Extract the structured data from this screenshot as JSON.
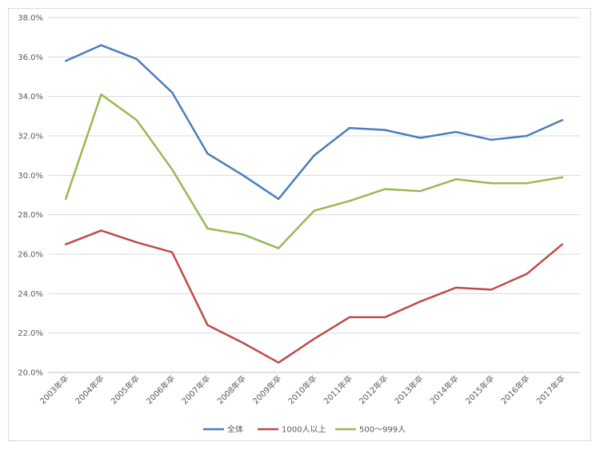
{
  "chart_data": {
    "type": "line",
    "categories": [
      "2003年卒",
      "2004年卒",
      "2005年卒",
      "2006年卒",
      "2007年卒",
      "2008年卒",
      "2009年卒",
      "2010年卒",
      "2011年卒",
      "2012年卒",
      "2013年卒",
      "2014年卒",
      "2015年卒",
      "2016年卒",
      "2017年卒"
    ],
    "series": [
      {
        "name": "全体",
        "color": "#4a7ebb",
        "values": [
          35.8,
          36.6,
          35.9,
          34.2,
          31.1,
          30.0,
          28.8,
          31.0,
          32.4,
          32.3,
          31.9,
          32.2,
          31.8,
          32.0,
          32.8
        ]
      },
      {
        "name": "1000人以上",
        "color": "#be4b48",
        "values": [
          26.5,
          27.2,
          26.6,
          26.1,
          22.4,
          21.5,
          20.5,
          21.7,
          22.8,
          22.8,
          23.6,
          24.3,
          24.2,
          25.0,
          26.5
        ]
      },
      {
        "name": "500〜999人",
        "color": "#98b954",
        "values": [
          28.8,
          34.1,
          32.8,
          30.3,
          27.3,
          27.0,
          26.3,
          28.2,
          28.7,
          29.3,
          29.2,
          29.8,
          29.6,
          29.6,
          29.9
        ]
      }
    ],
    "ylim": [
      20,
      38
    ],
    "yticks": [
      "20.0%",
      "22.0%",
      "24.0%",
      "26.0%",
      "28.0%",
      "30.0%",
      "32.0%",
      "34.0%",
      "36.0%",
      "38.0%"
    ],
    "grid": true,
    "legend": "bottom",
    "title": "",
    "xlabel": "",
    "ylabel": ""
  }
}
